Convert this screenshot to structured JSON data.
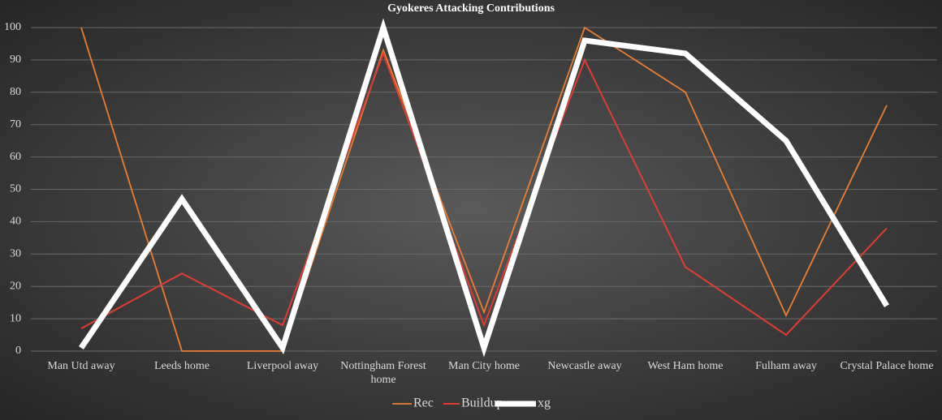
{
  "chart_data": {
    "type": "line",
    "title": "Gyokeres Attacking Contributions",
    "categories": [
      "Man Utd away",
      "Leeds home",
      "Liverpool away",
      "Nottingham Forest home",
      "Man City home",
      "Newcastle away",
      "West Ham home",
      "Fulham away",
      "Crystal Palace home"
    ],
    "series": [
      {
        "name": "Rec",
        "color": "#ed7d31",
        "values": [
          100,
          0,
          0,
          93,
          12,
          100,
          80,
          11,
          76
        ]
      },
      {
        "name": "Buildup",
        "color": "#e03c31",
        "values": [
          7,
          24,
          8,
          92,
          8,
          90,
          26,
          5,
          38
        ]
      },
      {
        "name": "xg",
        "color": "#ffffff",
        "values": [
          1,
          47,
          1,
          100,
          1,
          96,
          92,
          65,
          14
        ]
      }
    ],
    "ylim": [
      0,
      100
    ],
    "yticks": [
      0,
      10,
      20,
      30,
      40,
      50,
      60,
      70,
      80,
      90,
      100
    ],
    "grid": true,
    "legend": "bottom"
  }
}
